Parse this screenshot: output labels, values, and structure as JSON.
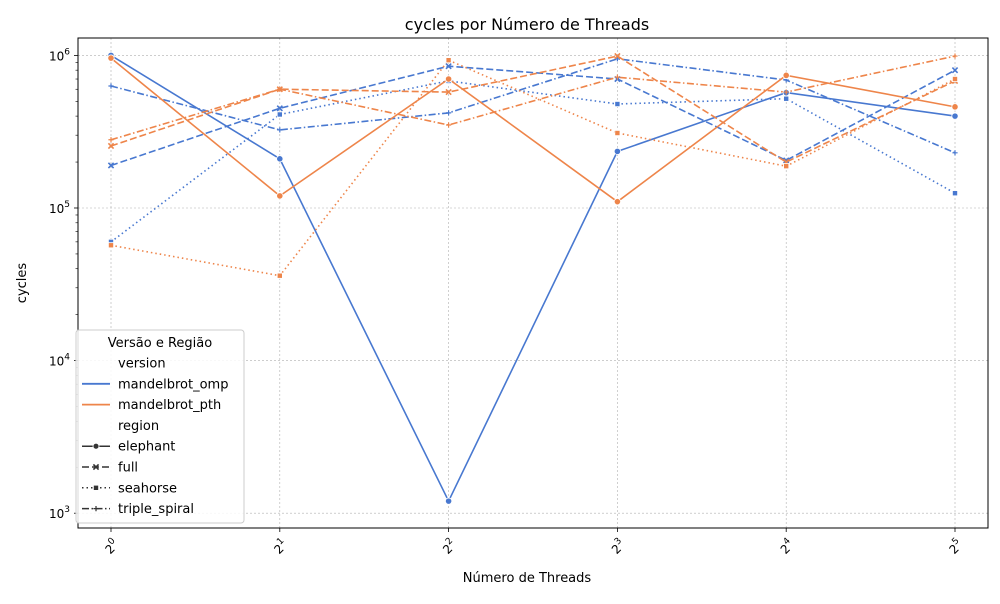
{
  "chart_data": {
    "type": "line",
    "title": "cycles por Número de Threads",
    "xlabel": "Número de Threads",
    "ylabel": "cycles",
    "x_scale": "log2",
    "y_scale": "log10",
    "x": [
      1,
      2,
      4,
      8,
      16,
      32
    ],
    "x_ticks": [
      {
        "base": "2",
        "exp": "0"
      },
      {
        "base": "2",
        "exp": "1"
      },
      {
        "base": "2",
        "exp": "2"
      },
      {
        "base": "2",
        "exp": "3"
      },
      {
        "base": "2",
        "exp": "4"
      },
      {
        "base": "2",
        "exp": "5"
      }
    ],
    "y_ticks": [
      {
        "base": "10",
        "exp": "3",
        "value": 1000
      },
      {
        "base": "10",
        "exp": "4",
        "value": 10000
      },
      {
        "base": "10",
        "exp": "5",
        "value": 100000
      },
      {
        "base": "10",
        "exp": "6",
        "value": 1000000
      }
    ],
    "ylim": [
      800,
      1300000
    ],
    "grid": true,
    "legend": {
      "title": "Versão e Região",
      "placement": "lower-left",
      "entries": [
        {
          "type": "header",
          "label": "version"
        },
        {
          "type": "color",
          "label": "mandelbrot_omp",
          "color": "#4878d0"
        },
        {
          "type": "color",
          "label": "mandelbrot_pth",
          "color": "#ee854a"
        },
        {
          "type": "header",
          "label": "region"
        },
        {
          "type": "style",
          "label": "elephant",
          "dash": "solid",
          "marker": "circle"
        },
        {
          "type": "style",
          "label": "full",
          "dash": "dashed",
          "marker": "x"
        },
        {
          "type": "style",
          "label": "seahorse",
          "dash": "dotted",
          "marker": "square"
        },
        {
          "type": "style",
          "label": "triple_spiral",
          "dash": "dashdot",
          "marker": "plus"
        }
      ]
    },
    "series": [
      {
        "version": "mandelbrot_omp",
        "region": "elephant",
        "color": "#4878d0",
        "dash": "solid",
        "marker": "circle",
        "values": [
          1000000,
          210000,
          1200,
          235000,
          570000,
          400000
        ]
      },
      {
        "version": "mandelbrot_omp",
        "region": "full",
        "color": "#4878d0",
        "dash": "dashed",
        "marker": "x",
        "values": [
          190000,
          450000,
          850000,
          700000,
          205000,
          800000
        ]
      },
      {
        "version": "mandelbrot_omp",
        "region": "seahorse",
        "color": "#4878d0",
        "dash": "dotted",
        "marker": "square",
        "values": [
          60000,
          410000,
          680000,
          480000,
          520000,
          125000
        ]
      },
      {
        "version": "mandelbrot_omp",
        "region": "triple_spiral",
        "color": "#4878d0",
        "dash": "dashdot",
        "marker": "plus",
        "values": [
          630000,
          325000,
          420000,
          950000,
          690000,
          230000
        ]
      },
      {
        "version": "mandelbrot_pth",
        "region": "elephant",
        "color": "#ee854a",
        "dash": "solid",
        "marker": "circle",
        "values": [
          960000,
          120000,
          700000,
          110000,
          740000,
          460000
        ]
      },
      {
        "version": "mandelbrot_pth",
        "region": "full",
        "color": "#ee854a",
        "dash": "dashed",
        "marker": "x",
        "values": [
          255000,
          600000,
          575000,
          990000,
          200000,
          680000
        ]
      },
      {
        "version": "mandelbrot_pth",
        "region": "seahorse",
        "color": "#ee854a",
        "dash": "dotted",
        "marker": "square",
        "values": [
          57000,
          36000,
          930000,
          310000,
          188000,
          700000
        ]
      },
      {
        "version": "mandelbrot_pth",
        "region": "triple_spiral",
        "color": "#ee854a",
        "dash": "dashdot",
        "marker": "plus",
        "values": [
          280000,
          600000,
          350000,
          720000,
          575000,
          990000
        ]
      }
    ]
  }
}
